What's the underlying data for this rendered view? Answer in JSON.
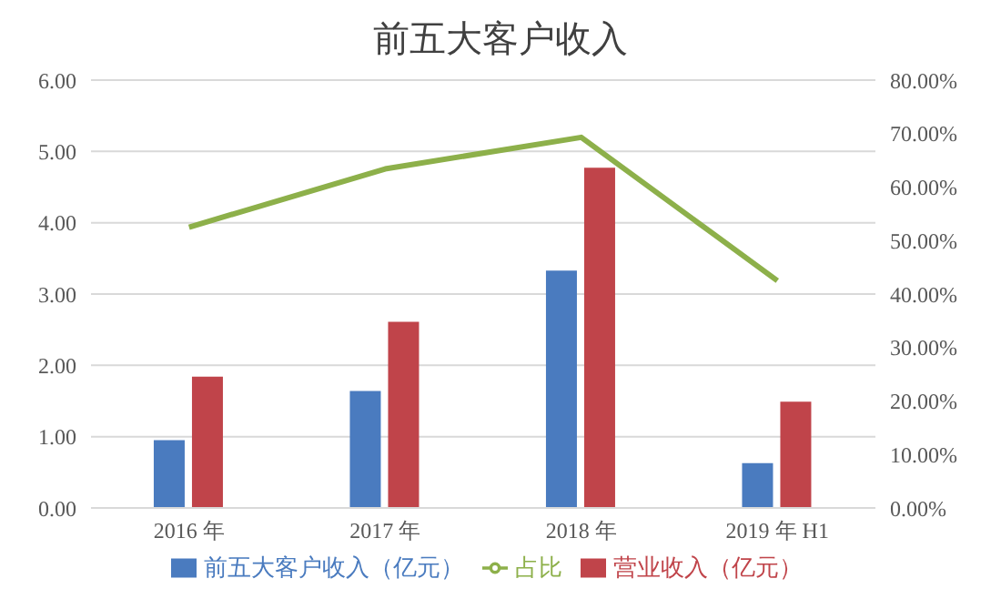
{
  "chart_data": {
    "type": "bar",
    "title": "前五大客户收入",
    "categories": [
      "2016 年",
      "2017 年",
      "2018 年",
      "2019 年 H1"
    ],
    "series": [
      {
        "name": "前五大客户收入（亿元）",
        "color": "#4a7bbf",
        "values": [
          0.95,
          1.64,
          3.33,
          0.63
        ]
      },
      {
        "name": "营业收入（亿元）",
        "color": "#c0444a",
        "values": [
          1.84,
          2.61,
          4.77,
          1.49
        ]
      },
      {
        "name": "占比",
        "color": "#8db04a",
        "type": "line",
        "axis": "y2",
        "values": [
          52.5,
          63.4,
          69.3,
          42.5
        ]
      }
    ],
    "ylim": [
      0,
      6
    ],
    "yticks": [
      {
        "value": 0,
        "label": "0.00"
      },
      {
        "value": 1,
        "label": "1.00"
      },
      {
        "value": 2,
        "label": "2.00"
      },
      {
        "value": 3,
        "label": "3.00"
      },
      {
        "value": 4,
        "label": "4.00"
      },
      {
        "value": 5,
        "label": "5.00"
      },
      {
        "value": 6,
        "label": "6.00"
      }
    ],
    "y2lim": [
      0,
      80
    ],
    "y2ticks": [
      {
        "value": 0,
        "label": "0.00%"
      },
      {
        "value": 10,
        "label": "10.00%"
      },
      {
        "value": 20,
        "label": "20.00%"
      },
      {
        "value": 30,
        "label": "30.00%"
      },
      {
        "value": 40,
        "label": "40.00%"
      },
      {
        "value": 50,
        "label": "50.00%"
      },
      {
        "value": 60,
        "label": "60.00%"
      },
      {
        "value": 70,
        "label": "70.00%"
      },
      {
        "value": 80,
        "label": "80.00%"
      }
    ],
    "grid": "y",
    "legend": "bottom",
    "marker": "none",
    "line_style": "solid"
  }
}
